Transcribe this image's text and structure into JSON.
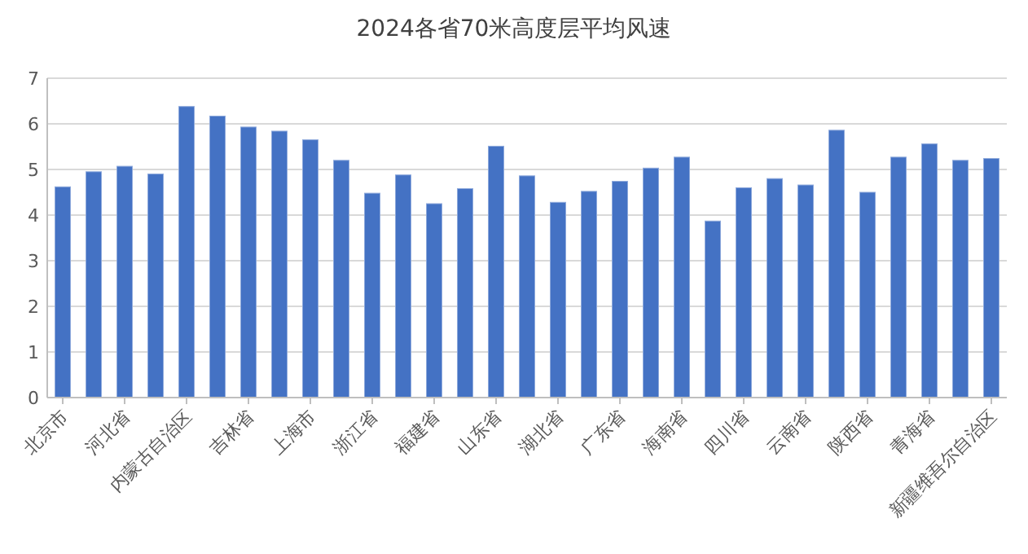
{
  "chart_data": {
    "type": "bar",
    "title": "2024各省70米高度层平均风速",
    "categories": [
      "北京市",
      null,
      "河北省",
      null,
      "内蒙古自治区",
      null,
      "吉林省",
      null,
      "上海市",
      null,
      "浙江省",
      null,
      "福建省",
      null,
      "山东省",
      null,
      "湖北省",
      null,
      "广东省",
      null,
      "海南省",
      null,
      "四川省",
      null,
      "云南省",
      null,
      "陕西省",
      null,
      "青海省",
      null,
      "新疆维吾尔自治区"
    ],
    "values": [
      4.62,
      4.95,
      5.07,
      4.9,
      6.38,
      6.17,
      5.93,
      5.84,
      5.65,
      5.2,
      4.48,
      4.88,
      4.25,
      4.58,
      5.51,
      4.86,
      4.28,
      4.52,
      4.74,
      5.03,
      5.27,
      3.87,
      4.6,
      4.8,
      4.66,
      5.86,
      4.5,
      5.27,
      5.56,
      5.2,
      5.24
    ],
    "color": "#4472c4",
    "ylim": [
      0,
      7
    ],
    "yticks": [
      0,
      1,
      2,
      3,
      4,
      5,
      6,
      7
    ],
    "grid": "y"
  }
}
